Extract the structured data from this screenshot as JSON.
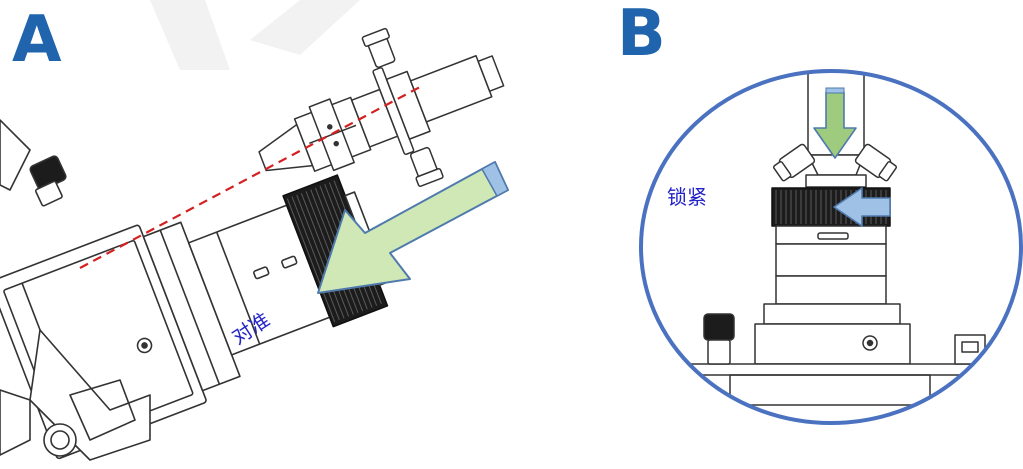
{
  "panel_a": {
    "letter": "A",
    "instruction": "对准"
  },
  "panel_b": {
    "letter": "B",
    "instruction": "锁紧"
  },
  "colors": {
    "letter": "#1f64ad",
    "label_text": "#2323c8",
    "align_line": "#d42020",
    "big_arrow_fill": "#cfe8b6",
    "big_arrow_stroke": "#4f7aad",
    "small_arrow_fill": "#9ecb7e",
    "lock_arrow_fill": "#9fc1e6",
    "circle": "#4a72c0",
    "line_art": "#333333"
  },
  "icons": [
    "align-arrow-icon",
    "lock-arrow-icon",
    "down-arrow-icon"
  ]
}
